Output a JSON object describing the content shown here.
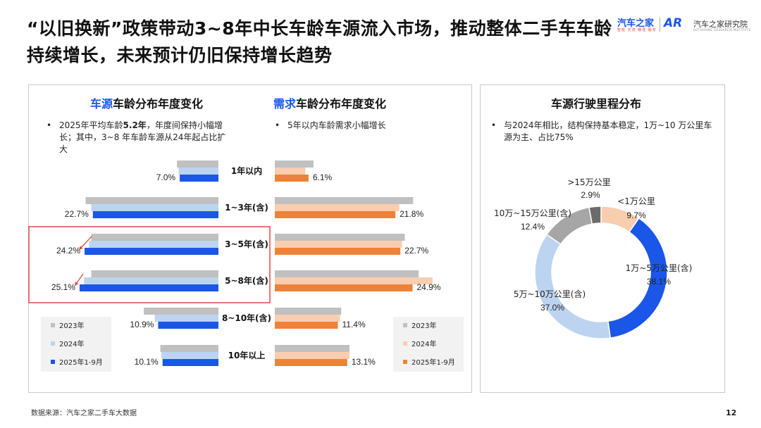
{
  "header": {
    "title": "“以旧换新”政策带动3~8年中长车龄车源流入市场，推动整体二手车车龄持续增长，未来预计仍旧保持增长趋势",
    "logo_main": "汽车之家",
    "logo_sub": "智能 交流 精选 服务",
    "logo_ar": "AR",
    "logo_text": "汽车之家研究院",
    "logo_en": "AUTOHOME RESEARCH INSTITUTE"
  },
  "left_panel": {
    "supply_title_highlight": "车源",
    "supply_title_rest": "车龄分布年度变化",
    "demand_title_highlight": "需求",
    "demand_title_rest": "车龄分布年度变化",
    "supply_note_pre": "2025年平均车龄",
    "supply_note_bold": "5.2年",
    "supply_note_post": "，年度间保持小幅增长；其中，3~8 年车龄车源从24年起占比扩大",
    "demand_note": "5年以内车龄需求小幅增长"
  },
  "right_panel": {
    "title": "车源行驶里程分布",
    "note": "与2024年相比，结构保持基本稳定，1万~10 万公里车源为主、占比75%"
  },
  "footer": {
    "source": "数据来源：汽车之家二手车大数据",
    "page": "12"
  },
  "chart_data": [
    {
      "type": "bar",
      "title": "车源车龄分布年度变化",
      "orientation": "horizontal",
      "direction": "leftward",
      "categories": [
        "1年以内",
        "1~3年(含)",
        "3~5年(含)",
        "5~8年(含)",
        "8~10年(含)",
        "10年以上"
      ],
      "series": [
        {
          "name": "2023年",
          "color": "#c0c0c0",
          "values": [
            7.5,
            24.0,
            23.0,
            23.0,
            13.5,
            10.5
          ]
        },
        {
          "name": "2024年",
          "color": "#bcd4f0",
          "values": [
            7.2,
            23.0,
            23.4,
            24.3,
            11.5,
            10.3
          ]
        },
        {
          "name": "2025年1-9月",
          "color": "#1a56e8",
          "values": [
            7.0,
            22.7,
            24.2,
            25.1,
            10.9,
            10.1
          ]
        }
      ],
      "data_labels": [
        "7.0%",
        "22.7%",
        "24.2%",
        "25.1%",
        "10.9%",
        "10.1%"
      ],
      "highlight_categories": [
        "3~5年(含)",
        "5~8年(含)"
      ],
      "legend_position": "bottom-left"
    },
    {
      "type": "bar",
      "title": "需求车龄分布年度变化",
      "orientation": "horizontal",
      "direction": "rightward",
      "categories": [
        "1年以内",
        "1~3年(含)",
        "3~5年(含)",
        "5~8年(含)",
        "8~10年(含)",
        "10年以上"
      ],
      "series": [
        {
          "name": "2023年",
          "color": "#c0c0c0",
          "values": [
            7.0,
            25.0,
            23.5,
            26.0,
            12.0,
            13.5
          ]
        },
        {
          "name": "2024年",
          "color": "#f9cdb0",
          "values": [
            5.5,
            22.5,
            23.0,
            28.5,
            11.8,
            13.5
          ]
        },
        {
          "name": "2025年1-9月",
          "color": "#ee8238",
          "values": [
            6.1,
            21.8,
            22.7,
            24.9,
            11.4,
            13.1
          ]
        }
      ],
      "data_labels": [
        "6.1%",
        "21.8%",
        "22.7%",
        "24.9%",
        "11.4%",
        "13.1%"
      ],
      "legend_position": "bottom-right"
    },
    {
      "type": "pie",
      "variant": "donut",
      "title": "车源行驶里程分布",
      "slices": [
        {
          "label": "<1万公里",
          "value": 9.7,
          "value_label": "9.7%",
          "color": "#f9cdb0"
        },
        {
          "label": "1万~5万公里(含)",
          "value": 38.1,
          "value_label": "38.1%",
          "color": "#1a56e8"
        },
        {
          "label": "5万~10万公里(含)",
          "value": 37.0,
          "value_label": "37.0%",
          "color": "#bcd4f0"
        },
        {
          "label": "10万~15万公里(含)",
          "value": 12.4,
          "value_label": "12.4%",
          "color": "#a6a6a6"
        },
        {
          "label": ">15万公里",
          "value": 2.9,
          "value_label": "2.9%",
          "color": "#6b6b6b"
        }
      ]
    }
  ]
}
